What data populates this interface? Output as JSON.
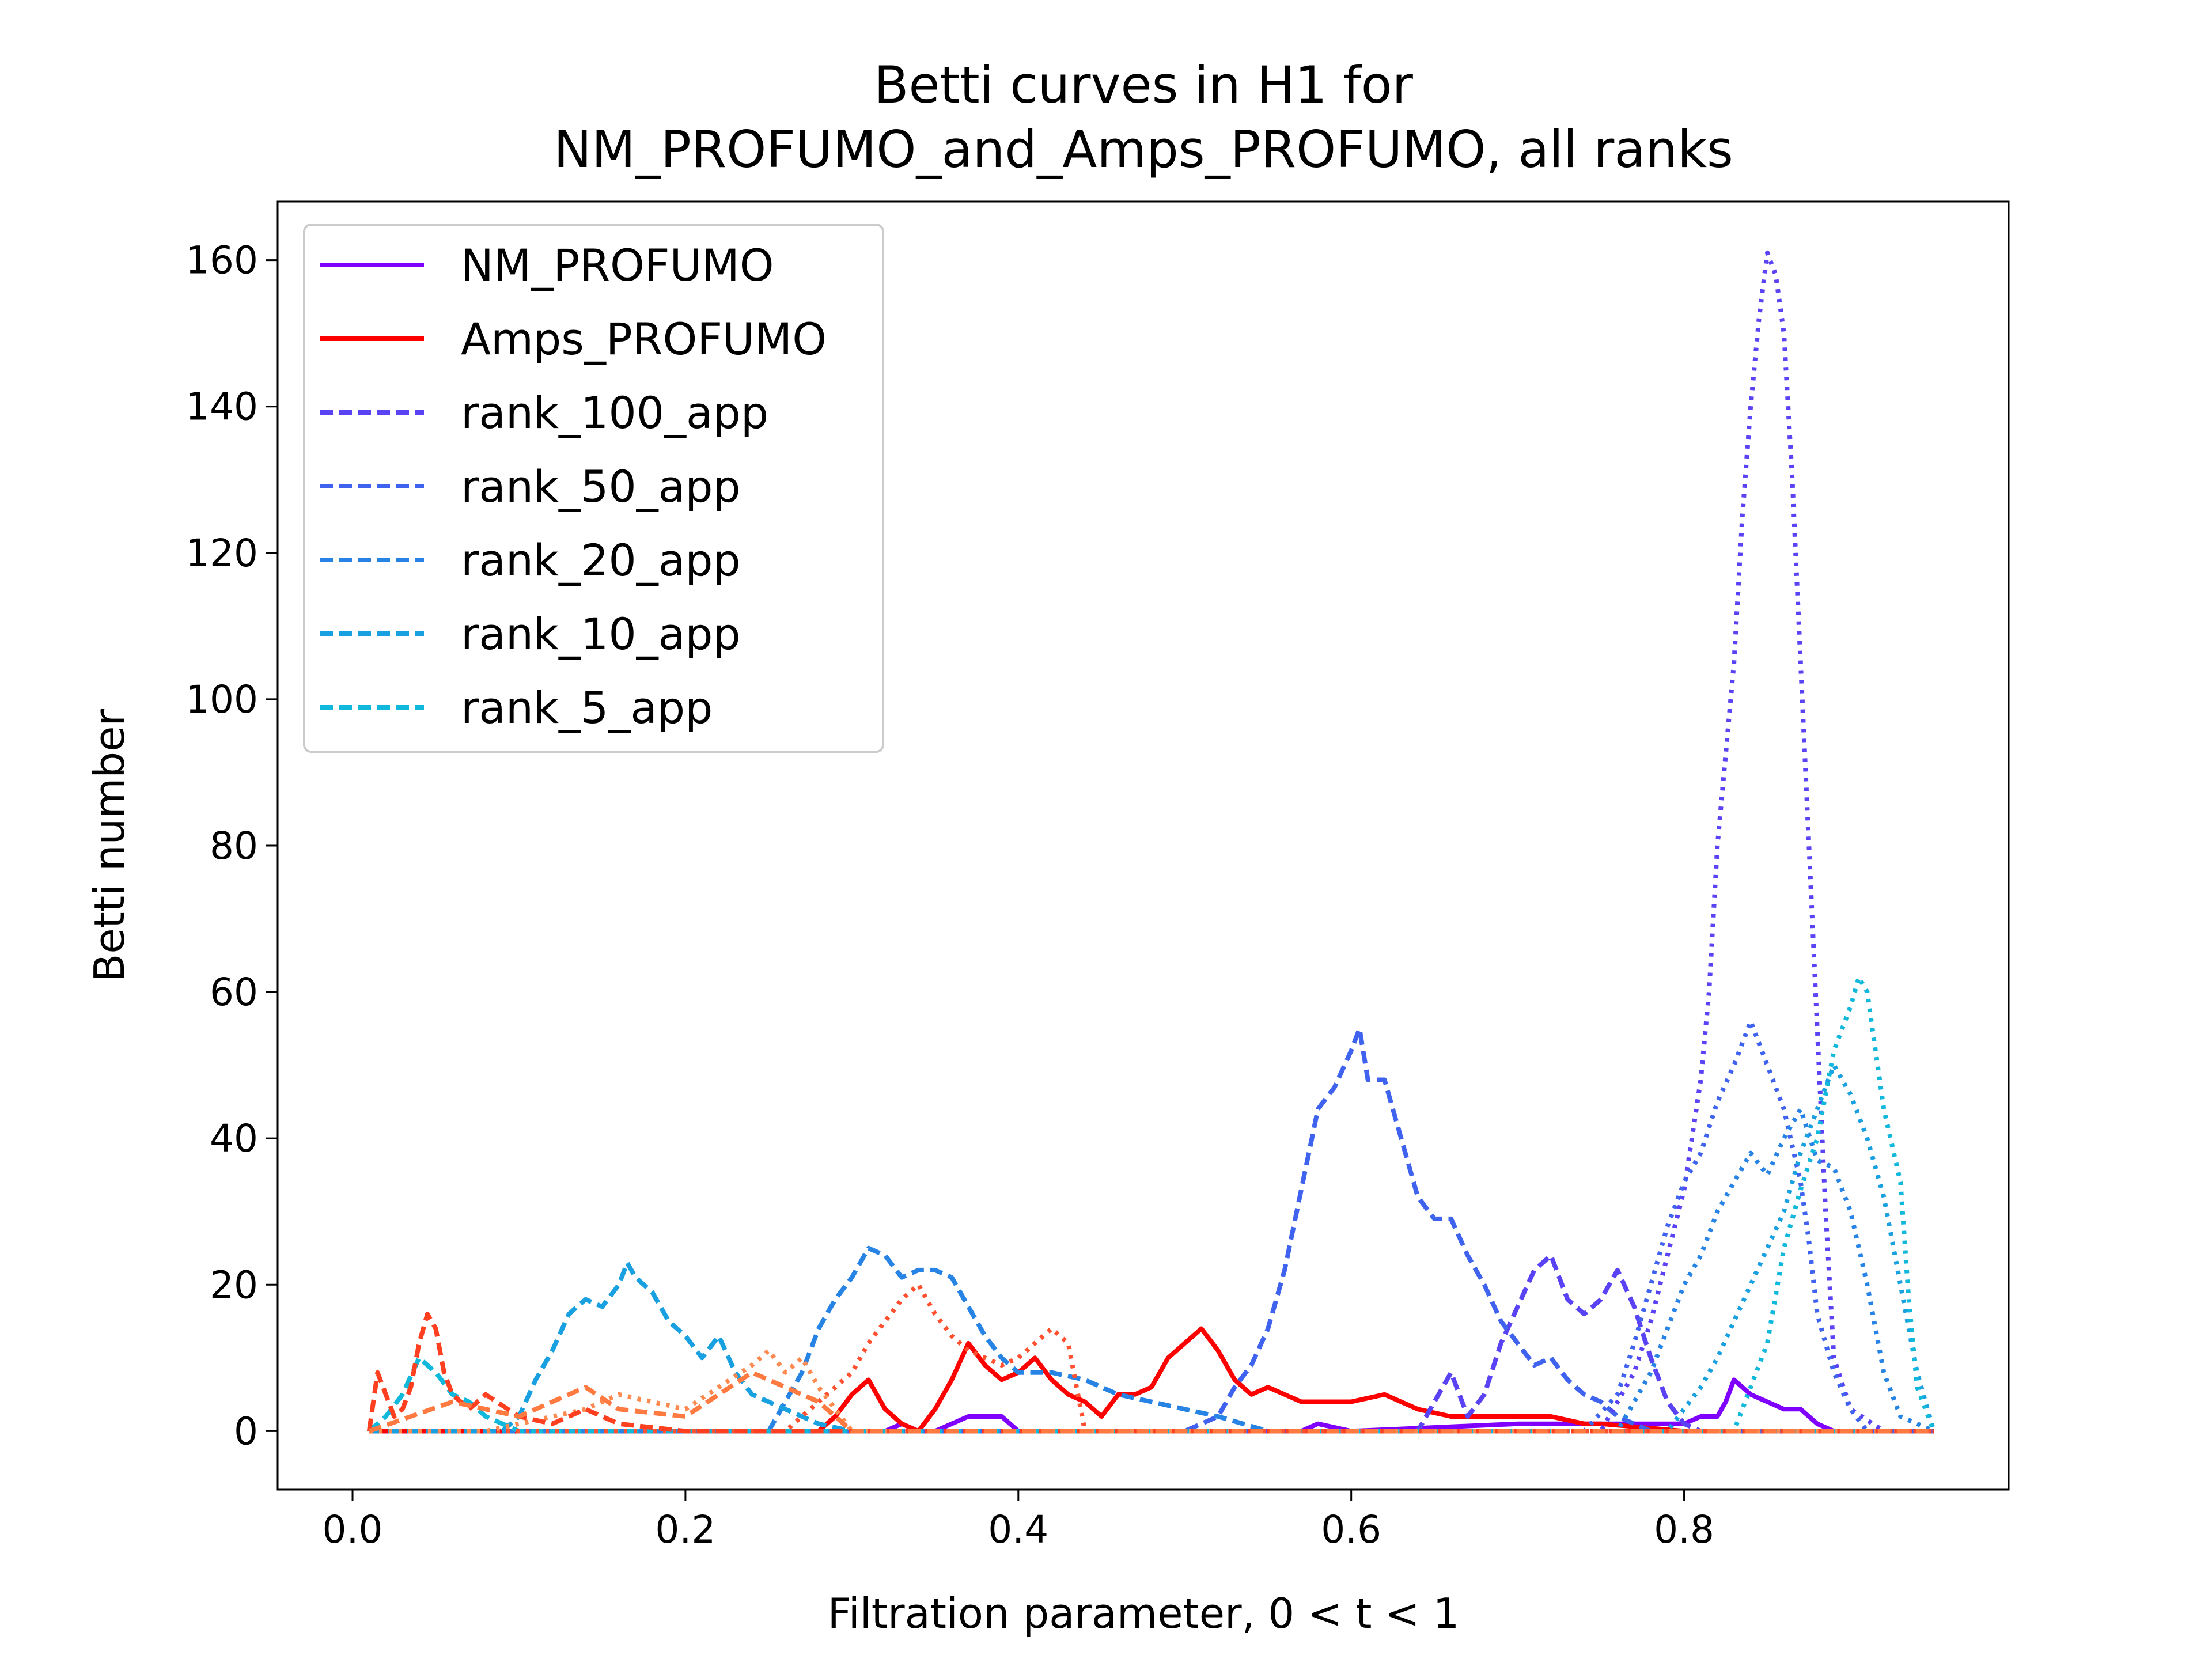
{
  "chart_data": {
    "type": "line",
    "title_lines": [
      "Betti curves in H1 for",
      "NM_PROFUMO_and_Amps_PROFUMO, all ranks"
    ],
    "xlabel": "Filtration parameter, 0 < t < 1",
    "ylabel": "Betti number",
    "xlim": [
      -0.045,
      0.995
    ],
    "ylim": [
      -8,
      168
    ],
    "xticks": [
      0.0,
      0.2,
      0.4,
      0.6,
      0.8
    ],
    "xtick_labels": [
      "0.0",
      "0.2",
      "0.4",
      "0.6",
      "0.8"
    ],
    "yticks": [
      0,
      20,
      40,
      60,
      80,
      100,
      120,
      140,
      160
    ],
    "ytick_labels": [
      "0",
      "20",
      "40",
      "60",
      "80",
      "100",
      "120",
      "140",
      "160"
    ],
    "grid": false,
    "legend_position": "top-left",
    "legend": [
      {
        "label": "NM_PROFUMO",
        "color": "#7f00ff",
        "style": "solid"
      },
      {
        "label": "Amps_PROFUMO",
        "color": "#ff0000",
        "style": "solid"
      },
      {
        "label": "rank_100_app",
        "color": "#5a43f5",
        "style": "dashed"
      },
      {
        "label": "rank_50_app",
        "color": "#3f63ee",
        "style": "dashed"
      },
      {
        "label": "rank_20_app",
        "color": "#2784e5",
        "style": "dashed"
      },
      {
        "label": "rank_10_app",
        "color": "#18a0e0",
        "style": "dashed"
      },
      {
        "label": "rank_5_app",
        "color": "#10b8dc",
        "style": "dashed"
      }
    ],
    "series": [
      {
        "key": "nm_profumo",
        "color": "#7f00ff",
        "style": "solid",
        "x": [
          0.01,
          0.3,
          0.32,
          0.33,
          0.34,
          0.35,
          0.36,
          0.37,
          0.38,
          0.39,
          0.4,
          0.57,
          0.58,
          0.6,
          0.7,
          0.75,
          0.8,
          0.81,
          0.82,
          0.825,
          0.83,
          0.84,
          0.85,
          0.86,
          0.87,
          0.88,
          0.89
        ],
        "y": [
          0,
          0,
          0,
          1,
          0,
          0,
          1,
          2,
          2,
          2,
          0,
          0,
          1,
          0,
          1,
          1,
          1,
          2,
          2,
          4,
          7,
          5,
          4,
          3,
          3,
          1,
          0
        ]
      },
      {
        "key": "amps_profumo",
        "color": "#ff0000",
        "style": "solid",
        "x": [
          0.01,
          0.28,
          0.29,
          0.3,
          0.31,
          0.32,
          0.33,
          0.34,
          0.35,
          0.36,
          0.37,
          0.38,
          0.39,
          0.4,
          0.41,
          0.42,
          0.43,
          0.44,
          0.45,
          0.46,
          0.47,
          0.48,
          0.49,
          0.5,
          0.51,
          0.52,
          0.53,
          0.54,
          0.55,
          0.56,
          0.57,
          0.58,
          0.6,
          0.62,
          0.64,
          0.66,
          0.68,
          0.7,
          0.72,
          0.74,
          0.75,
          0.8,
          0.88
        ],
        "y": [
          0,
          0,
          2,
          5,
          7,
          3,
          1,
          0,
          3,
          7,
          12,
          9,
          7,
          8,
          10,
          7,
          5,
          4,
          2,
          5,
          5,
          6,
          10,
          12,
          14,
          11,
          7,
          5,
          6,
          5,
          4,
          4,
          4,
          5,
          3,
          2,
          2,
          2,
          2,
          1,
          1,
          0,
          0
        ]
      },
      {
        "key": "rank_100_app",
        "color": "#5a43f5",
        "style": "dashed",
        "x": [
          0.01,
          0.64,
          0.66,
          0.67,
          0.68,
          0.69,
          0.7,
          0.71,
          0.72,
          0.73,
          0.74,
          0.75,
          0.76,
          0.77,
          0.78,
          0.79,
          0.8,
          0.81,
          0.82,
          0.95
        ],
        "y": [
          0,
          0,
          8,
          2,
          5,
          12,
          17,
          22,
          24,
          18,
          16,
          18,
          22,
          17,
          10,
          4,
          1,
          0,
          0,
          0
        ]
      },
      {
        "key": "rank_50_app",
        "color": "#3f63ee",
        "style": "dashed",
        "x": [
          0.01,
          0.5,
          0.52,
          0.53,
          0.54,
          0.55,
          0.56,
          0.57,
          0.58,
          0.59,
          0.6,
          0.605,
          0.61,
          0.62,
          0.63,
          0.64,
          0.65,
          0.66,
          0.67,
          0.68,
          0.69,
          0.7,
          0.71,
          0.72,
          0.73,
          0.74,
          0.75,
          0.76,
          0.77,
          0.78,
          0.8,
          0.95
        ],
        "y": [
          0,
          0,
          2,
          6,
          9,
          14,
          22,
          33,
          44,
          47,
          52,
          55,
          48,
          48,
          40,
          32,
          29,
          29,
          24,
          20,
          15,
          12,
          9,
          10,
          7,
          5,
          4,
          2,
          1,
          0,
          0,
          0
        ]
      },
      {
        "key": "rank_20_app",
        "color": "#2784e5",
        "style": "dashed",
        "x": [
          0.01,
          0.25,
          0.27,
          0.28,
          0.29,
          0.3,
          0.31,
          0.32,
          0.33,
          0.34,
          0.35,
          0.36,
          0.37,
          0.38,
          0.39,
          0.4,
          0.42,
          0.44,
          0.46,
          0.48,
          0.5,
          0.52,
          0.55,
          0.95
        ],
        "y": [
          0,
          0,
          8,
          14,
          18,
          21,
          25,
          24,
          21,
          22,
          22,
          21,
          17,
          13,
          10,
          8,
          8,
          7,
          5,
          4,
          3,
          2,
          0,
          0
        ]
      },
      {
        "key": "rank_10_app",
        "color": "#18a0e0",
        "style": "dashed",
        "x": [
          0.01,
          0.09,
          0.1,
          0.11,
          0.12,
          0.13,
          0.14,
          0.15,
          0.16,
          0.165,
          0.17,
          0.18,
          0.19,
          0.2,
          0.21,
          0.22,
          0.23,
          0.24,
          0.25,
          0.26,
          0.27,
          0.28,
          0.3,
          0.32,
          0.95
        ],
        "y": [
          0,
          0,
          2,
          7,
          11,
          16,
          18,
          17,
          20,
          23,
          21,
          19,
          15,
          13,
          10,
          13,
          8,
          5,
          4,
          3,
          2,
          1,
          0,
          0,
          0
        ]
      },
      {
        "key": "rank_5_app",
        "color": "#10b8dc",
        "style": "dashed",
        "x": [
          0.01,
          0.02,
          0.03,
          0.04,
          0.05,
          0.06,
          0.07,
          0.08,
          0.09,
          0.1,
          0.95
        ],
        "y": [
          0,
          2,
          5,
          10,
          8,
          5,
          4,
          2,
          1,
          0,
          0
        ]
      },
      {
        "key": "dotted_rank100",
        "color": "#5a43f5",
        "style": "dotted",
        "x": [
          0.01,
          0.75,
          0.77,
          0.78,
          0.79,
          0.8,
          0.81,
          0.815,
          0.82,
          0.83,
          0.835,
          0.84,
          0.845,
          0.85,
          0.855,
          0.86,
          0.865,
          0.87,
          0.875,
          0.88,
          0.885,
          0.89,
          0.9,
          0.92,
          0.95
        ],
        "y": [
          0,
          0,
          8,
          15,
          24,
          33,
          48,
          60,
          80,
          105,
          125,
          140,
          152,
          161,
          158,
          150,
          130,
          105,
          80,
          55,
          30,
          10,
          3,
          0,
          0
        ]
      },
      {
        "key": "dotted_rank50",
        "color": "#3f63ee",
        "style": "dotted",
        "x": [
          0.01,
          0.74,
          0.76,
          0.77,
          0.78,
          0.79,
          0.8,
          0.81,
          0.82,
          0.83,
          0.84,
          0.85,
          0.86,
          0.87,
          0.875,
          0.88,
          0.89,
          0.9,
          0.91,
          0.95
        ],
        "y": [
          0,
          0,
          5,
          12,
          20,
          28,
          34,
          38,
          45,
          50,
          56,
          50,
          44,
          34,
          26,
          16,
          8,
          3,
          0,
          0
        ]
      },
      {
        "key": "dotted_rank20",
        "color": "#2784e5",
        "style": "dotted",
        "x": [
          0.01,
          0.76,
          0.78,
          0.79,
          0.8,
          0.81,
          0.82,
          0.83,
          0.84,
          0.85,
          0.86,
          0.87,
          0.88,
          0.89,
          0.9,
          0.91,
          0.92,
          0.93,
          0.95
        ],
        "y": [
          0,
          0,
          8,
          14,
          20,
          24,
          30,
          34,
          38,
          35,
          40,
          44,
          37,
          36,
          30,
          20,
          8,
          2,
          0
        ]
      },
      {
        "key": "dotted_rank10",
        "color": "#18a0e0",
        "style": "dotted",
        "x": [
          0.01,
          0.79,
          0.81,
          0.82,
          0.83,
          0.84,
          0.85,
          0.86,
          0.87,
          0.88,
          0.89,
          0.9,
          0.91,
          0.92,
          0.93,
          0.94,
          0.95
        ],
        "y": [
          0,
          0,
          6,
          10,
          15,
          20,
          25,
          30,
          38,
          44,
          50,
          46,
          40,
          32,
          20,
          8,
          0
        ]
      },
      {
        "key": "dotted_rank5",
        "color": "#10b8dc",
        "style": "dotted",
        "x": [
          0.01,
          0.83,
          0.85,
          0.86,
          0.87,
          0.88,
          0.89,
          0.9,
          0.905,
          0.91,
          0.915,
          0.92,
          0.93,
          0.935,
          0.94,
          0.95
        ],
        "y": [
          0,
          0,
          12,
          25,
          33,
          40,
          52,
          58,
          62,
          60,
          52,
          44,
          34,
          18,
          6,
          0
        ]
      },
      {
        "key": "orange_dotted_1",
        "color": "#ff5030",
        "style": "dotted",
        "x": [
          0.01,
          0.26,
          0.28,
          0.3,
          0.31,
          0.32,
          0.33,
          0.34,
          0.35,
          0.36,
          0.37,
          0.38,
          0.39,
          0.4,
          0.41,
          0.42,
          0.43,
          0.44,
          0.95
        ],
        "y": [
          0,
          0,
          4,
          8,
          12,
          15,
          18,
          20,
          16,
          13,
          11,
          10,
          9,
          10,
          12,
          14,
          12,
          0,
          0
        ]
      },
      {
        "key": "orange_dotted_2",
        "color": "#ff8a50",
        "style": "dotted",
        "x": [
          0.01,
          0.08,
          0.1,
          0.12,
          0.14,
          0.16,
          0.18,
          0.2,
          0.22,
          0.24,
          0.25,
          0.26,
          0.27,
          0.28,
          0.3,
          0.95
        ],
        "y": [
          0,
          0,
          1,
          2,
          3,
          5,
          4,
          3,
          6,
          9,
          11,
          8,
          10,
          6,
          0,
          0
        ]
      },
      {
        "key": "orange_dashed_1",
        "color": "#ff4020",
        "style": "dashed",
        "x": [
          0.01,
          0.015,
          0.02,
          0.025,
          0.03,
          0.035,
          0.04,
          0.045,
          0.05,
          0.055,
          0.06,
          0.07,
          0.08,
          0.1,
          0.12,
          0.14,
          0.16,
          0.2,
          0.95
        ],
        "y": [
          0,
          8,
          5,
          2,
          3,
          6,
          12,
          16,
          14,
          8,
          5,
          3,
          5,
          2,
          1,
          3,
          1,
          0,
          0
        ]
      },
      {
        "key": "orange_dashed_2",
        "color": "#ff7a40",
        "style": "dashed",
        "x": [
          0.01,
          0.06,
          0.08,
          0.1,
          0.12,
          0.14,
          0.16,
          0.2,
          0.22,
          0.24,
          0.26,
          0.28,
          0.3,
          0.95
        ],
        "y": [
          0,
          4,
          3,
          2,
          4,
          6,
          3,
          2,
          5,
          8,
          6,
          4,
          0,
          0
        ]
      }
    ]
  }
}
